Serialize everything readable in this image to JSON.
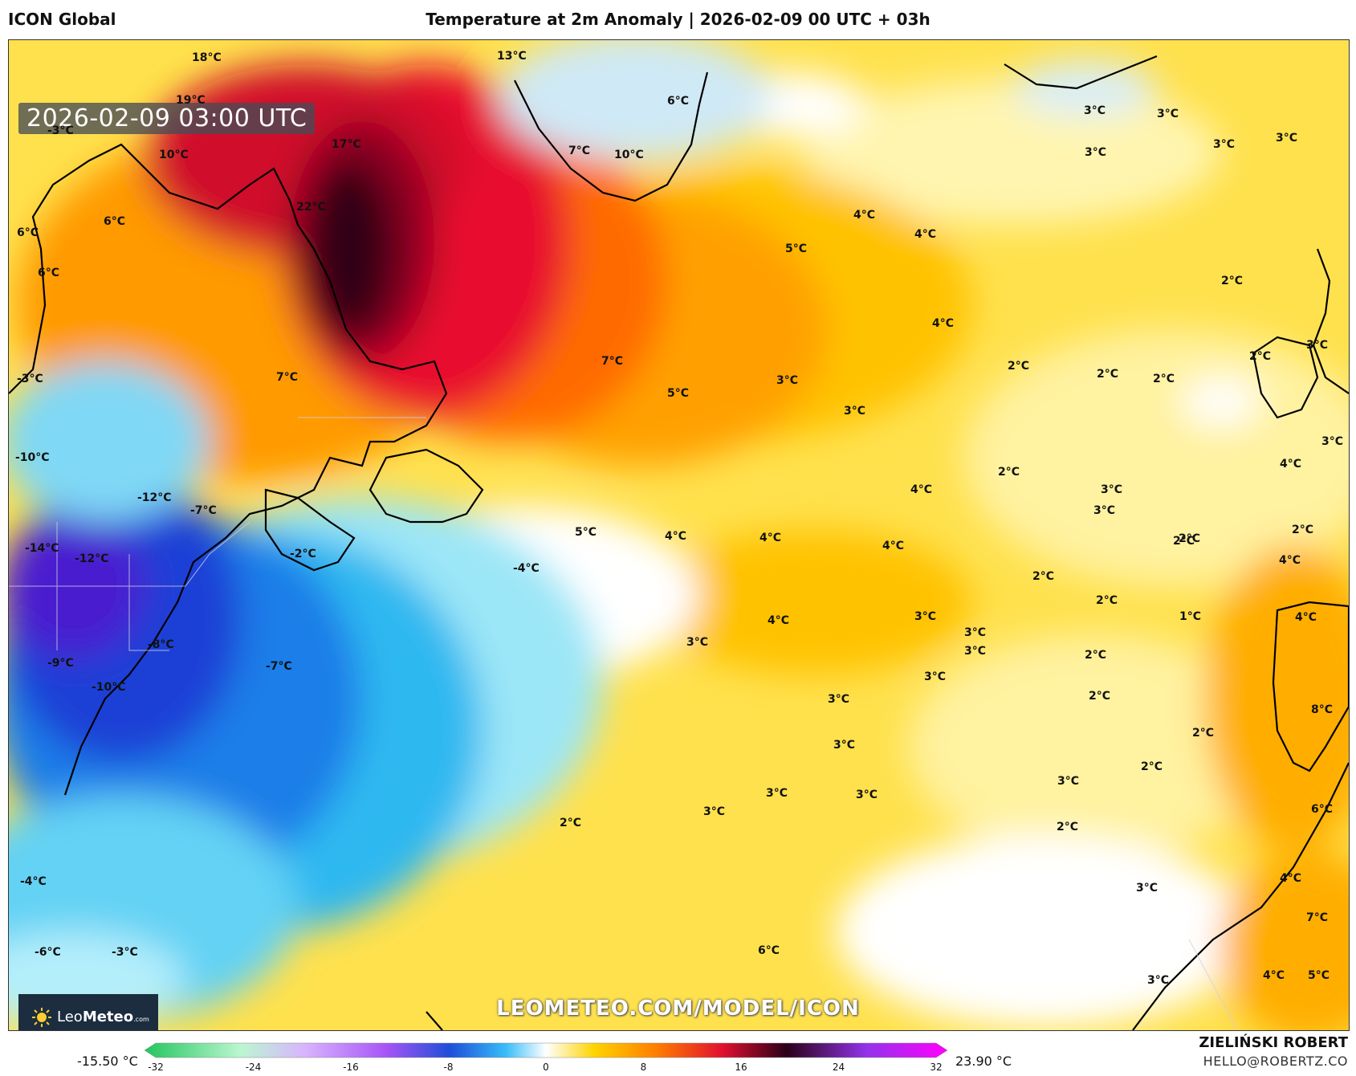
{
  "header": {
    "model": "ICON Global",
    "title": "Temperature at 2m Anomaly | 2026-02-09 00 UTC + 03h"
  },
  "map": {
    "timestamp": "2026-02-09 03:00 UTC",
    "watermark_url": "LEOMETEO.COM/MODEL/ICON",
    "logo": {
      "name": "LeoMeteo",
      "part1": "Leo",
      "part2": "Meteo",
      "suffix": ".com"
    },
    "labels": [
      "18°C",
      "19°C",
      "13°C",
      "6°C",
      "-3°C",
      "10°C",
      "17°C",
      "7°C",
      "10°C",
      "22°C",
      "6°C",
      "6°C",
      "6°C",
      "-3°C",
      "7°C",
      "-10°C",
      "-12°C",
      "-7°C",
      "-14°C",
      "-12°C",
      "-2°C",
      "-4°C",
      "-8°C",
      "-9°C",
      "-10°C",
      "-7°C",
      "-4°C",
      "-6°C",
      "-3°C",
      "5°C",
      "7°C",
      "5°C",
      "3°C",
      "3°C",
      "4°C",
      "4°C",
      "4°C",
      "5°C",
      "3°C",
      "3°C",
      "3°C",
      "3°C",
      "3°C",
      "2°C",
      "2°C",
      "2°C",
      "2°C",
      "2°C",
      "2°C",
      "3°C",
      "3°C",
      "4°C",
      "3°C",
      "3°C",
      "2°C",
      "4°C",
      "4°C",
      "4°C",
      "4°C",
      "2°C",
      "2°C",
      "2°C",
      "4°C",
      "4°C",
      "3°C",
      "3°C",
      "3°C",
      "3°C",
      "3°C",
      "3°C",
      "3°C",
      "3°C",
      "3°C",
      "3°C",
      "2°C",
      "2°C",
      "2°C",
      "2°C",
      "1°C",
      "3°C",
      "2°C",
      "2°C",
      "3°C",
      "6°C",
      "4°C",
      "8°C",
      "6°C",
      "4°C",
      "7°C",
      "3°C",
      "4°C",
      "5°C",
      "2°C"
    ]
  },
  "colorbar": {
    "min_label": "-15.50 °C",
    "max_label": "23.90 °C",
    "ticks": [
      "-32",
      "-24",
      "-16",
      "-8",
      "0",
      "8",
      "16",
      "24",
      "32"
    ],
    "range": [
      -32,
      32
    ],
    "colors": {
      "neg_extreme": "#22c55e",
      "neg_mid": "#a855f7",
      "neg_blue": "#1d4ed8",
      "neg_light": "#67e8f9",
      "zero": "#ffffff",
      "pos_yellow": "#ffd400",
      "pos_orange": "#ff7a00",
      "pos_red": "#e0102f",
      "pos_dark": "#2a0018",
      "pos_magenta": "#ff00ff"
    }
  },
  "footer": {
    "author": "ZIELIŃSKI ROBERT",
    "email": "HELLO@ROBERTZ.CO"
  }
}
